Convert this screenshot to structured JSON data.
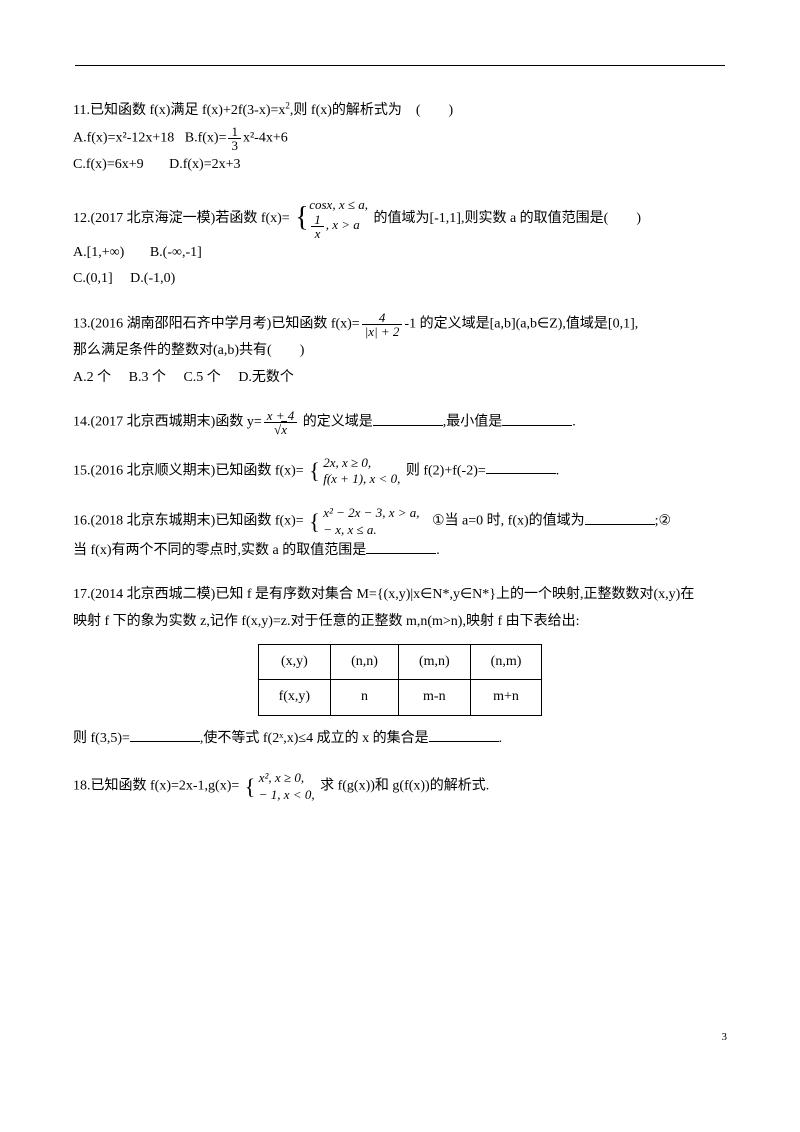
{
  "page_number": "3",
  "q11": {
    "stem_a": "11.已知函数 f(x)满足 f(x)+2f(3-x)=x",
    "stem_b": ",则 f(x)的解析式为　(　　)",
    "optA": "A.f(x)=x²-12x+18",
    "optB_pre": "B.f(x)=",
    "optB_post": "x²-4x+6",
    "frac_num": "1",
    "frac_den": "3",
    "optC": "C.f(x)=6x+9",
    "optD": "D.f(x)=2x+3"
  },
  "q12": {
    "stem_a": "12.(2017 北京海淀一模)若函数 f(x)=",
    "pw_r1": "cosx, x ≤ a,",
    "pw_r2a": "1",
    "pw_r2b": "x",
    "pw_r2c": ", x > a",
    "stem_b": " 的值域为[-1,1],则实数 a 的取值范围是(　　)",
    "optA": "A.[1,+∞)",
    "optB": "B.(-∞,-1]",
    "optC": "C.(0,1]",
    "optD": "D.(-1,0)"
  },
  "q13": {
    "stem_a": "13.(2016 湖南邵阳石齐中学月考)已知函数 f(x)=",
    "frac_num": "4",
    "frac_den": "|x| + 2",
    "stem_b": "-1 的定义域是[a,b](a,b∈Z),值域是[0,1],",
    "line2": "那么满足条件的整数对(a,b)共有(　　)",
    "optA": "A.2 个",
    "optB": "B.3 个",
    "optC": "C.5 个",
    "optD": "D.无数个"
  },
  "q14": {
    "stem_a": "14.(2017 北京西城期末)函数 y=",
    "frac_num": "x + 4",
    "frac_den_sqrt": "x",
    "stem_b": " 的定义域是",
    "stem_c": ",最小值是",
    "stem_d": "."
  },
  "q15": {
    "stem_a": "15.(2016 北京顺义期末)已知函数 f(x)=",
    "pw_r1": "2x, x ≥ 0,",
    "pw_r2": "f(x + 1), x < 0,",
    "stem_b": "则 f(2)+f(-2)=",
    "stem_c": "."
  },
  "q16": {
    "stem_a": "16.(2018 北京东城期末)已知函数 f(x)=",
    "pw_r1": "x²  −  2x  −  3, x > a,",
    "pw_r2": "− x, x ≤ a.",
    "stem_b": "①当 a=0 时, f(x)的值域为",
    "stem_c": ";②",
    "line2a": "当 f(x)有两个不同的零点时,实数 a 的取值范围是",
    "line2b": "."
  },
  "q17": {
    "line1": "17.(2014 北京西城二模)已知 f 是有序数对集合 M={(x,y)|x∈N*,y∈N*}上的一个映射,正整数数对(x,y)在",
    "line2": "映射 f 下的象为实数 z,记作 f(x,y)=z.对于任意的正整数 m,n(m>n),映射 f 由下表给出:",
    "table": {
      "columns": [
        "(x,y)",
        "(n,n)",
        "(m,n)",
        "(n,m)"
      ],
      "rows": [
        [
          "f(x,y)",
          "n",
          "m-n",
          "m+n"
        ]
      ]
    },
    "line3a": "则 f(3,5)=",
    "line3b": ",使不等式 f(2ˣ,x)≤4 成立的 x 的集合是",
    "line3c": "."
  },
  "q18": {
    "stem_a": "18.已知函数 f(x)=2x-1,g(x)=",
    "pw_r1": " x², x ≥ 0,",
    "pw_r2": "− 1, x < 0,",
    "stem_b": "求 f(g(x))和 g(f(x))的解析式."
  }
}
